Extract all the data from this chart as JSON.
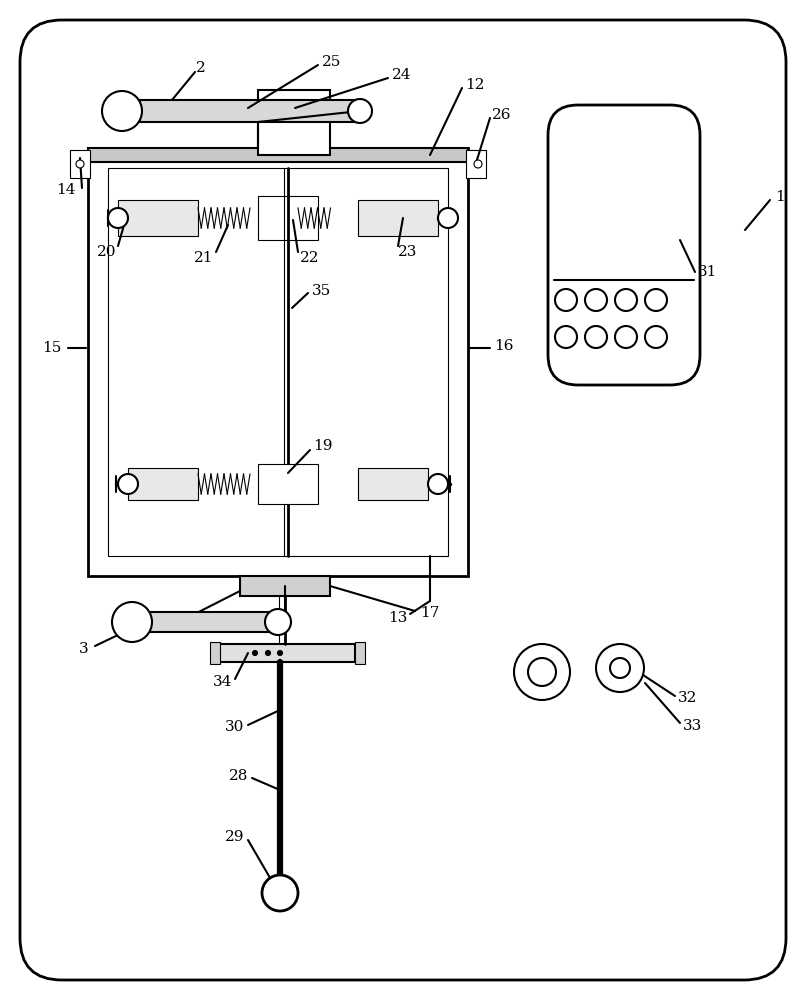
{
  "bg_color": "#ffffff",
  "lc": "#000000",
  "lw": 1.5,
  "tlw": 0.8,
  "label_fs": 11
}
